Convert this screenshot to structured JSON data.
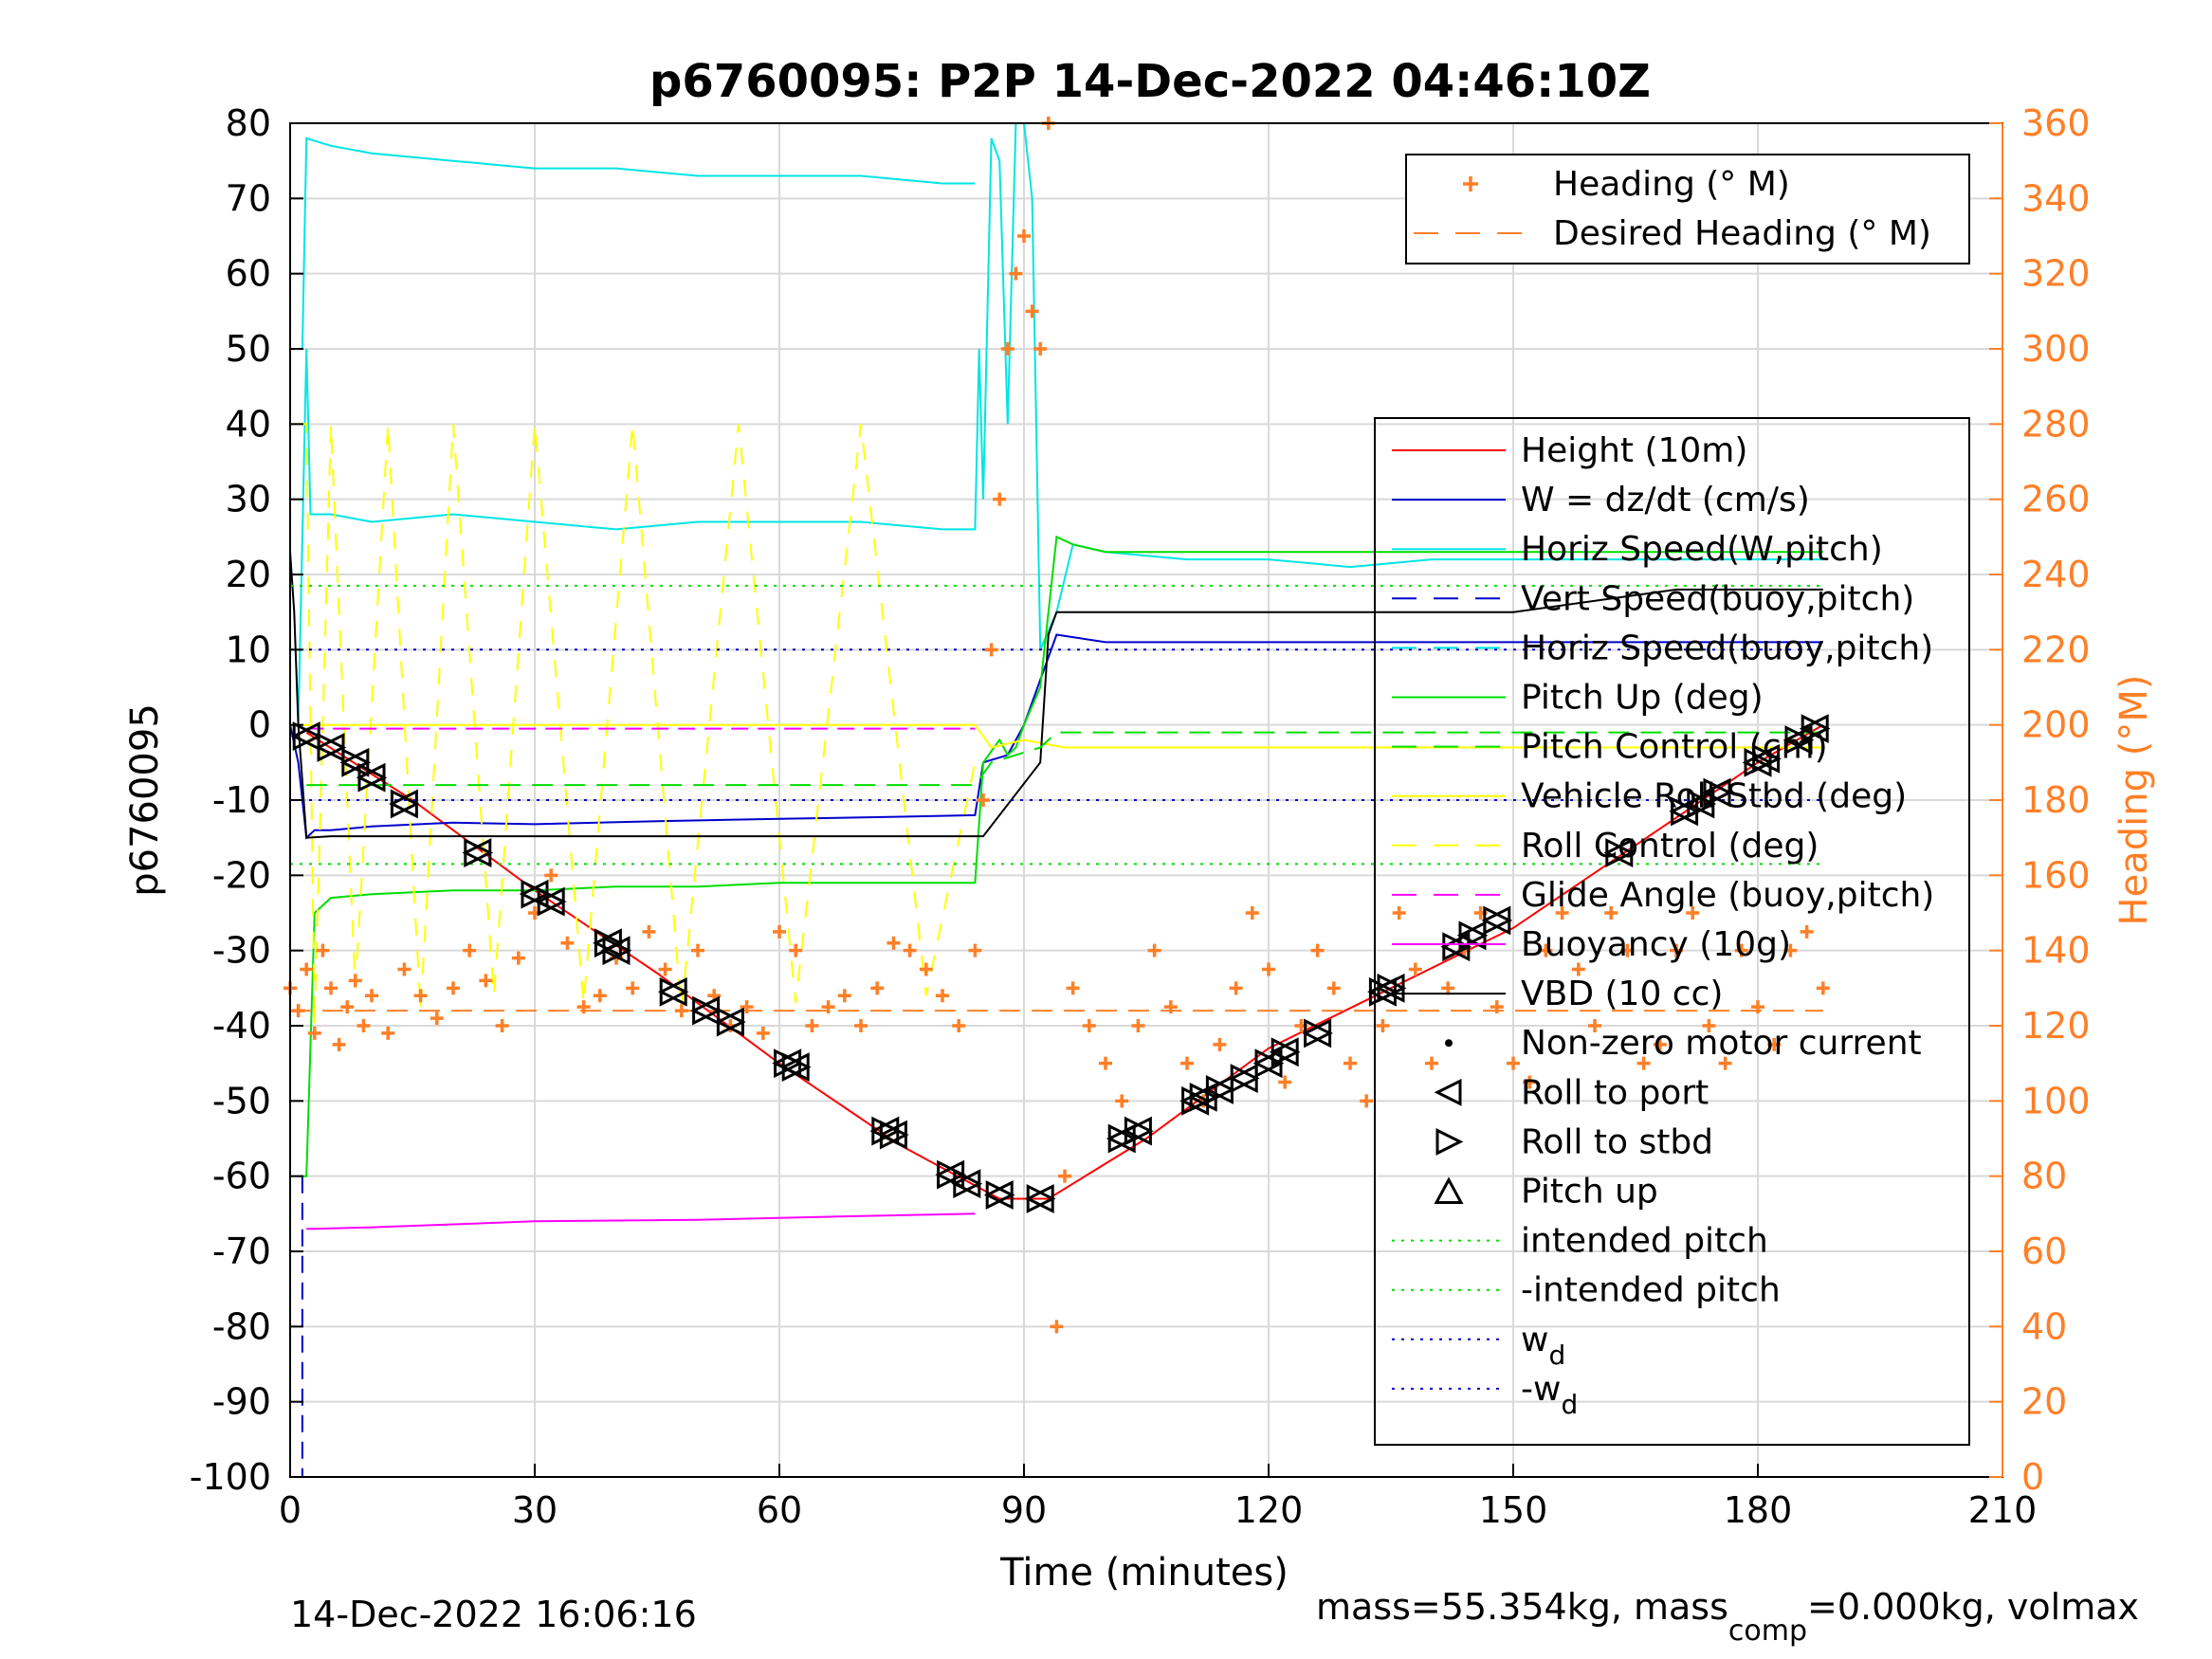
{
  "chart_data": {
    "type": "line",
    "title": "p6760095: P2P 14-Dec-2022 04:46:10Z",
    "xlabel": "Time (minutes)",
    "ylabel": "p6760095",
    "y2label": "Heading (°M)",
    "xlim": [
      0,
      210
    ],
    "ylim": [
      -100,
      80
    ],
    "y2lim": [
      0,
      360
    ],
    "xticks": [
      "0",
      "30",
      "60",
      "90",
      "120",
      "150",
      "180",
      "210"
    ],
    "yticks": [
      "80",
      "70",
      "60",
      "50",
      "40",
      "30",
      "20",
      "10",
      "0",
      "-10",
      "-20",
      "-30",
      "-40",
      "-50",
      "-60",
      "-70",
      "-80",
      "-90",
      "-100"
    ],
    "y2ticks": [
      "360",
      "340",
      "320",
      "300",
      "280",
      "260",
      "240",
      "220",
      "200",
      "180",
      "160",
      "140",
      "120",
      "100",
      "80",
      "60",
      "40",
      "20",
      "0"
    ],
    "grid": true,
    "footer_left": "14-Dec-2022 16:06:16",
    "footer_right_a": "mass=55.354kg, mass",
    "footer_right_sub": "comp",
    "footer_right_b": "=0.000kg, volmax",
    "heading_legend": [
      {
        "label": "Heading (° M)",
        "color": "#ff7f27",
        "style": "plus"
      },
      {
        "label": "Desired Heading (° M)",
        "color": "#ff7f27",
        "style": "dashed"
      }
    ],
    "legend": [
      {
        "label": "Height (10m)",
        "color": "#ff0000",
        "style": "solid"
      },
      {
        "label": "W = dz/dt (cm/s)",
        "color": "#0000cc",
        "style": "solid"
      },
      {
        "label": "Horiz Speed(W,pitch)",
        "color": "#00e5e5",
        "style": "solid"
      },
      {
        "label": "Vert Speed(buoy,pitch)",
        "color": "#0000cc",
        "style": "dashed"
      },
      {
        "label": "Horiz Speed(buoy,pitch)",
        "color": "#00e5e5",
        "style": "dashed"
      },
      {
        "label": "Pitch Up (deg)",
        "color": "#00dd00",
        "style": "solid"
      },
      {
        "label": "Pitch Control (cm)",
        "color": "#00dd00",
        "style": "dashed"
      },
      {
        "label": "Vehicle Roll Stbd (deg)",
        "color": "#ffff00",
        "style": "solid"
      },
      {
        "label": "Roll Control (deg)",
        "color": "#ffff00",
        "style": "dashed"
      },
      {
        "label": "Glide Angle (buoy,pitch)",
        "color": "#ff00ff",
        "style": "dashed"
      },
      {
        "label": "Buoyancy (10g)",
        "color": "#ff00ff",
        "style": "solid"
      },
      {
        "label": "VBD (10 cc)",
        "color": "#000000",
        "style": "solid"
      },
      {
        "label": "Non-zero motor current",
        "color": "#000000",
        "style": "dot"
      },
      {
        "label": "Roll to port",
        "color": "#000000",
        "style": "tri-left"
      },
      {
        "label": "Roll to stbd",
        "color": "#000000",
        "style": "tri-right"
      },
      {
        "label": "Pitch up",
        "color": "#000000",
        "style": "tri-up"
      },
      {
        "label": "intended pitch",
        "color": "#00dd00",
        "style": "dotted"
      },
      {
        "label": "-intended pitch",
        "color": "#00dd00",
        "style": "dotted"
      },
      {
        "label": "w",
        "sub": "d",
        "color": "#0000cc",
        "style": "dotted"
      },
      {
        "label": "-w",
        "sub": "d",
        "color": "#0000cc",
        "style": "dotted"
      }
    ],
    "series": [
      {
        "name": "Height (10m)",
        "color": "#ff0000",
        "width": 2,
        "x": [
          2,
          15,
          30,
          45,
          60,
          75,
          87,
          93,
          105,
          120,
          135,
          150,
          165,
          180,
          188
        ],
        "y": [
          -1,
          -10,
          -22,
          -33,
          -45,
          -56,
          -63,
          -63,
          -55,
          -43,
          -35,
          -27,
          -16,
          -5,
          0
        ]
      },
      {
        "name": "W = dz/dt (cm/s)",
        "color": "#0000cc",
        "width": 2,
        "x": [
          0,
          1,
          2,
          3,
          5,
          10,
          20,
          30,
          45,
          60,
          75,
          84,
          85,
          88,
          90,
          94,
          100,
          110,
          120,
          130,
          140,
          150,
          160,
          170,
          180,
          188
        ],
        "y": [
          0,
          -5,
          -15,
          -14,
          -14,
          -13.5,
          -13,
          -13.2,
          -12.8,
          -12.5,
          -12.2,
          -12,
          -5,
          -4,
          0,
          12,
          11,
          11,
          11,
          11,
          11,
          11,
          11,
          11,
          11,
          11
        ]
      },
      {
        "name": "Horiz Speed(W,pitch)",
        "color": "#00e5e5",
        "width": 2,
        "x": [
          1,
          2,
          2.5,
          5,
          10,
          20,
          30,
          40,
          50,
          60,
          70,
          80,
          84,
          84.5,
          85,
          86,
          87,
          88,
          89,
          90,
          91,
          92,
          94,
          96,
          100,
          110,
          120,
          130,
          140,
          150,
          160,
          170,
          180,
          188
        ],
        "y": [
          0,
          50,
          28,
          28,
          27,
          28,
          27,
          26,
          27,
          27,
          27,
          26,
          26,
          50,
          30,
          78,
          75,
          40,
          80,
          80,
          70,
          10,
          15,
          24,
          23,
          22,
          22,
          21,
          22,
          22,
          22,
          22,
          22,
          22
        ]
      },
      {
        "name": "Horiz Speed(buoy,pitch)",
        "color": "#00e5e5",
        "width": 2,
        "x": [
          1.5,
          2,
          5,
          10,
          20,
          30,
          40,
          50,
          60,
          70,
          80,
          84
        ],
        "y": [
          50,
          78,
          77,
          76,
          75,
          74,
          74,
          73,
          73,
          73,
          72,
          72
        ]
      },
      {
        "name": "Pitch Up (deg)",
        "color": "#00dd00",
        "width": 2,
        "x": [
          1,
          2,
          3,
          5,
          10,
          20,
          30,
          40,
          50,
          60,
          70,
          80,
          84,
          85,
          87,
          88,
          89,
          90,
          92,
          94,
          96,
          100,
          110,
          120,
          130,
          140,
          150,
          160,
          170,
          180,
          188
        ],
        "y": [
          -60,
          -60,
          -25,
          -23,
          -22.5,
          -22,
          -22,
          -21.5,
          -21.5,
          -21,
          -21,
          -21,
          -21,
          -5,
          -2,
          -4,
          -3,
          0,
          5,
          25,
          24,
          23,
          23,
          23,
          23,
          23,
          23,
          23,
          23,
          23,
          23
        ]
      },
      {
        "name": "Vehicle Roll Stbd (deg)",
        "color": "#ffff00",
        "width": 2,
        "x": [
          0,
          2,
          5,
          10,
          20,
          30,
          40,
          50,
          60,
          70,
          80,
          84,
          86,
          90,
          95,
          100,
          110,
          120,
          130,
          140,
          150,
          160,
          170,
          180,
          188
        ],
        "y": [
          0,
          0,
          0,
          0,
          0,
          0,
          0,
          0,
          0,
          0,
          0,
          0,
          -3,
          -2,
          -3,
          -3,
          -3,
          -3,
          -3,
          -3,
          -3,
          -3,
          -3,
          -3,
          -3
        ]
      },
      {
        "name": "Roll Control (deg)",
        "color": "#ffff00",
        "width": 2,
        "dash": "18,16",
        "x": [
          1,
          2,
          3,
          5,
          8,
          12,
          16,
          20,
          25,
          30,
          36,
          42,
          48,
          55,
          62,
          70,
          78,
          84
        ],
        "y": [
          40,
          40,
          -40,
          40,
          -35,
          40,
          -38,
          40,
          -36,
          40,
          -37,
          40,
          -38,
          40,
          -37,
          40,
          -36,
          -5
        ]
      },
      {
        "name": "Glide Angle (buoy,pitch)",
        "color": "#ff00ff",
        "width": 2,
        "dash": "18,10",
        "x": [
          2,
          84
        ],
        "y": [
          -0.5,
          -0.5
        ]
      },
      {
        "name": "Buoyancy (10g)",
        "color": "#ff00ff",
        "width": 2,
        "x": [
          2,
          3,
          10,
          30,
          50,
          70,
          84
        ],
        "y": [
          -67,
          -67,
          -66.8,
          -66,
          -65.8,
          -65.3,
          -65
        ]
      },
      {
        "name": "VBD (10 cc)",
        "color": "#000000",
        "width": 2,
        "x": [
          0,
          0.5,
          1,
          2,
          5,
          20,
          40,
          60,
          84,
          85,
          92,
          93,
          94,
          120,
          150,
          170,
          188
        ],
        "y": [
          23,
          15,
          0,
          -15,
          -14.8,
          -14.8,
          -14.8,
          -14.8,
          -14.8,
          -14.8,
          -5,
          12,
          15,
          15,
          15,
          18,
          18
        ]
      },
      {
        "name": "Vert Speed(buoy,pitch)",
        "color": "#0000cc",
        "width": 2,
        "dash": "18,10",
        "x": [
          1.5,
          1.5
        ],
        "y": [
          -60,
          -100
        ]
      },
      {
        "name": "Pitch Control (cm)",
        "color": "#00dd00",
        "width": 2,
        "dash": "22,12",
        "x": [
          2,
          84,
          86,
          89,
          92,
          94,
          150,
          170,
          188
        ],
        "y": [
          -8,
          -8,
          -5,
          -4,
          -3,
          -1,
          -1,
          -1,
          -1
        ]
      },
      {
        "name": "intended pitch",
        "color": "#00dd00",
        "width": 2,
        "dash": "3,7",
        "x": [
          0,
          188
        ],
        "y": [
          18.5,
          18.5
        ]
      },
      {
        "name": "-intended pitch",
        "color": "#00dd00",
        "width": 2,
        "dash": "3,7",
        "x": [
          0,
          188
        ],
        "y": [
          -18.5,
          -18.5
        ]
      },
      {
        "name": "w_d",
        "color": "#0000cc",
        "width": 2,
        "dash": "3,7",
        "x": [
          0,
          188
        ],
        "y": [
          10,
          10
        ]
      },
      {
        "name": "-w_d",
        "color": "#0000cc",
        "width": 2,
        "dash": "3,7",
        "x": [
          0,
          188
        ],
        "y": [
          -10,
          -10
        ]
      },
      {
        "name": "Desired Heading (° M)",
        "color": "#ff7f27",
        "width": 2,
        "dash": "22,12",
        "axis": "right",
        "x": [
          0,
          188
        ],
        "y": [
          124,
          124
        ]
      }
    ],
    "heading_points": {
      "x": [
        0,
        1,
        2,
        3,
        4,
        5,
        6,
        7,
        8,
        9,
        10,
        12,
        14,
        16,
        18,
        20,
        22,
        24,
        26,
        28,
        30,
        32,
        34,
        36,
        38,
        40,
        42,
        44,
        46,
        48,
        50,
        52,
        54,
        56,
        58,
        60,
        62,
        64,
        66,
        68,
        70,
        72,
        74,
        76,
        78,
        80,
        82,
        84,
        85,
        86,
        87,
        88,
        89,
        90,
        91,
        92,
        93,
        94,
        95,
        96,
        98,
        100,
        102,
        104,
        106,
        108,
        110,
        112,
        114,
        116,
        118,
        120,
        122,
        124,
        126,
        128,
        130,
        132,
        134,
        136,
        138,
        140,
        142,
        144,
        146,
        148,
        150,
        152,
        154,
        156,
        158,
        160,
        162,
        164,
        166,
        168,
        170,
        172,
        174,
        176,
        178,
        180,
        182,
        184,
        186,
        188
      ],
      "y": [
        130,
        124,
        135,
        118,
        140,
        130,
        115,
        125,
        132,
        120,
        128,
        118,
        135,
        128,
        122,
        130,
        140,
        132,
        120,
        138,
        150,
        160,
        142,
        125,
        128,
        138,
        130,
        145,
        135,
        124,
        140,
        128,
        120,
        125,
        118,
        145,
        140,
        120,
        125,
        128,
        120,
        130,
        142,
        140,
        135,
        128,
        120,
        140,
        180,
        220,
        260,
        300,
        320,
        330,
        310,
        300,
        360,
        40,
        80,
        130,
        120,
        110,
        100,
        120,
        140,
        125,
        110,
        100,
        115,
        130,
        150,
        135,
        105,
        120,
        140,
        130,
        110,
        100,
        120,
        150,
        135,
        110,
        130,
        140,
        150,
        125,
        110,
        105,
        140,
        150,
        135,
        120,
        150,
        140,
        110,
        115,
        140,
        150,
        120,
        110,
        140,
        125,
        115,
        140,
        145,
        130
      ]
    },
    "markers": {
      "x": [
        2,
        5,
        8,
        10,
        14,
        23,
        30,
        32,
        39,
        40,
        47,
        51,
        54,
        61,
        62,
        73,
        74,
        81,
        83,
        87,
        92,
        102,
        104,
        111,
        112,
        114,
        117,
        120,
        122,
        126,
        134,
        135,
        143,
        145,
        148,
        163,
        171,
        173,
        175,
        180,
        181,
        185,
        187
      ],
      "y": [
        -1.5,
        -3,
        -5,
        -7,
        -10.5,
        -17,
        -22.5,
        -23.5,
        -29,
        -30,
        -35.5,
        -38,
        -39.5,
        -45,
        -45.5,
        -54,
        -54.5,
        -59.8,
        -61,
        -62.5,
        -63,
        -55,
        -54,
        -50,
        -49.5,
        -48.5,
        -47,
        -45,
        -43.5,
        -41,
        -35.5,
        -35,
        -29.5,
        -28,
        -26,
        -17,
        -11.5,
        -10.5,
        -9,
        -5,
        -4.5,
        -2,
        -0.5
      ]
    }
  }
}
